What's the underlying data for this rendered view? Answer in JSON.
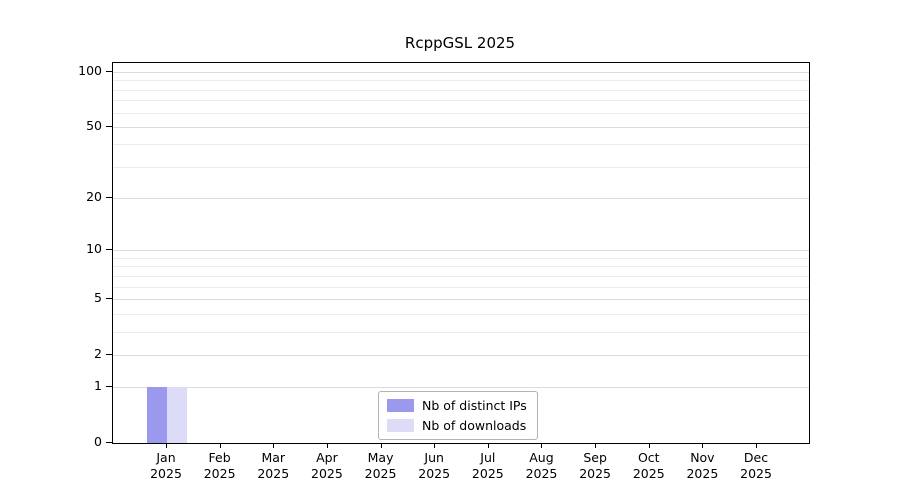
{
  "chart_data": {
    "type": "bar",
    "title": "RcppGSL 2025",
    "categories": [
      "Jan",
      "Feb",
      "Mar",
      "Apr",
      "May",
      "Jun",
      "Jul",
      "Aug",
      "Sep",
      "Oct",
      "Nov",
      "Dec"
    ],
    "year_label": "2025",
    "series": [
      {
        "name": "Nb of distinct IPs",
        "color": "#9a99ee",
        "values": [
          1,
          0,
          0,
          0,
          0,
          0,
          0,
          0,
          0,
          0,
          0,
          0
        ]
      },
      {
        "name": "Nb of downloads",
        "color": "#dcdcf9",
        "values": [
          1,
          0,
          0,
          0,
          0,
          0,
          0,
          0,
          0,
          0,
          0,
          0
        ]
      }
    ],
    "yticks": [
      0,
      1,
      2,
      5,
      10,
      20,
      50,
      100
    ],
    "scale": "log1p",
    "ylim": [
      0,
      112
    ],
    "grid": "horizontal-minor",
    "legend_position": "bottom-center"
  }
}
